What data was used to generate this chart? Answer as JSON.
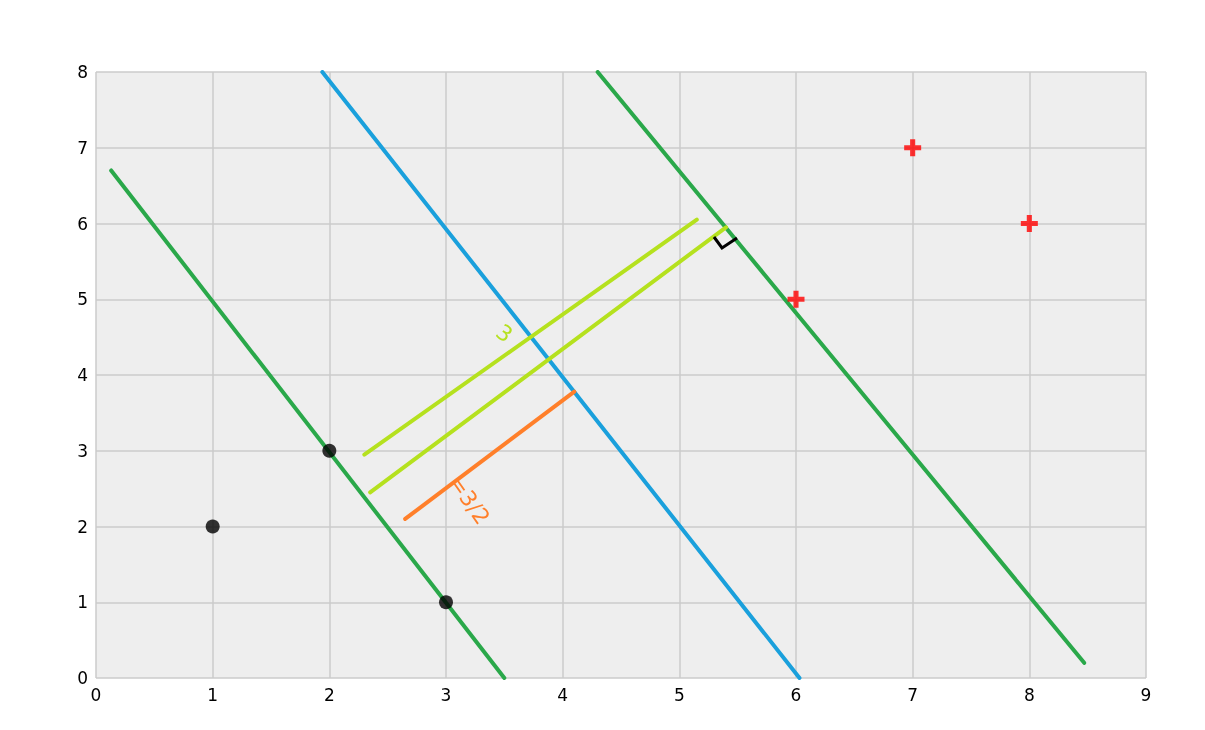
{
  "chart_data": {
    "type": "scatter",
    "xlim": [
      0,
      9
    ],
    "ylim": [
      0,
      8
    ],
    "xticks": [
      0,
      1,
      2,
      3,
      4,
      5,
      6,
      7,
      8,
      9
    ],
    "yticks": [
      0,
      1,
      2,
      3,
      4,
      5,
      6,
      7,
      8
    ],
    "grid": true,
    "series": [
      {
        "type": "line",
        "color": "#2aa84a",
        "x": [
          0.13,
          3.5
        ],
        "values": [
          6.7,
          0
        ],
        "marker": "none"
      },
      {
        "type": "line",
        "color": "#1aa0dc",
        "x": [
          1.94,
          6.03
        ],
        "values": [
          8,
          0
        ],
        "marker": "none"
      },
      {
        "type": "line",
        "color": "#2aa84a",
        "x": [
          4.3,
          8.47
        ],
        "values": [
          8,
          0.2
        ],
        "marker": "none"
      },
      {
        "type": "line",
        "color": "#b5e11e",
        "x": [
          2.3,
          5.15
        ],
        "values": [
          2.95,
          6.05
        ],
        "marker": "none"
      },
      {
        "type": "line",
        "color": "#b5e11e",
        "x": [
          2.35,
          5.4
        ],
        "values": [
          2.45,
          5.95
        ],
        "marker": "none"
      },
      {
        "type": "line",
        "color": "#ff7f2a",
        "x": [
          2.65,
          4.1
        ],
        "values": [
          2.1,
          3.78
        ],
        "marker": "none"
      },
      {
        "color": "#000000",
        "x": [
          1,
          2,
          3
        ],
        "values": [
          2,
          3,
          1
        ],
        "marker": "circle"
      },
      {
        "color": "#ff0000",
        "x": [
          6,
          7,
          8
        ],
        "values": [
          5,
          7,
          6
        ],
        "marker": "cross"
      }
    ],
    "annotations": [
      "3",
      "=3/2"
    ]
  }
}
